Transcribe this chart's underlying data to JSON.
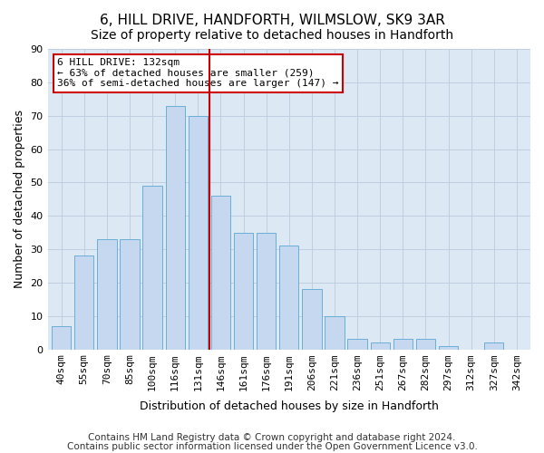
{
  "title1": "6, HILL DRIVE, HANDFORTH, WILMSLOW, SK9 3AR",
  "title2": "Size of property relative to detached houses in Handforth",
  "xlabel": "Distribution of detached houses by size in Handforth",
  "ylabel": "Number of detached properties",
  "categories": [
    "40sqm",
    "55sqm",
    "70sqm",
    "85sqm",
    "100sqm",
    "116sqm",
    "131sqm",
    "146sqm",
    "161sqm",
    "176sqm",
    "191sqm",
    "206sqm",
    "221sqm",
    "236sqm",
    "251sqm",
    "267sqm",
    "282sqm",
    "297sqm",
    "312sqm",
    "327sqm",
    "342sqm"
  ],
  "values": [
    7,
    28,
    33,
    33,
    49,
    73,
    70,
    46,
    35,
    35,
    31,
    18,
    10,
    3,
    2,
    3,
    3,
    1,
    0,
    2,
    0
  ],
  "bar_color": "#c5d8f0",
  "bar_edge_color": "#6aaed6",
  "vline_color": "#cc0000",
  "vline_x": 6.5,
  "ylim": [
    0,
    90
  ],
  "yticks": [
    0,
    10,
    20,
    30,
    40,
    50,
    60,
    70,
    80,
    90
  ],
  "annotation_box_text": "6 HILL DRIVE: 132sqm\n← 63% of detached houses are smaller (259)\n36% of semi-detached houses are larger (147) →",
  "annotation_box_color": "#ffffff",
  "annotation_box_edge_color": "#cc0000",
  "footer1": "Contains HM Land Registry data © Crown copyright and database right 2024.",
  "footer2": "Contains public sector information licensed under the Open Government Licence v3.0.",
  "grid_color": "#c0cfe0",
  "background_color": "#dce9f5",
  "title_fontsize": 11,
  "subtitle_fontsize": 10,
  "tick_fontsize": 8,
  "ylabel_fontsize": 9,
  "xlabel_fontsize": 9,
  "footer_fontsize": 7.5
}
